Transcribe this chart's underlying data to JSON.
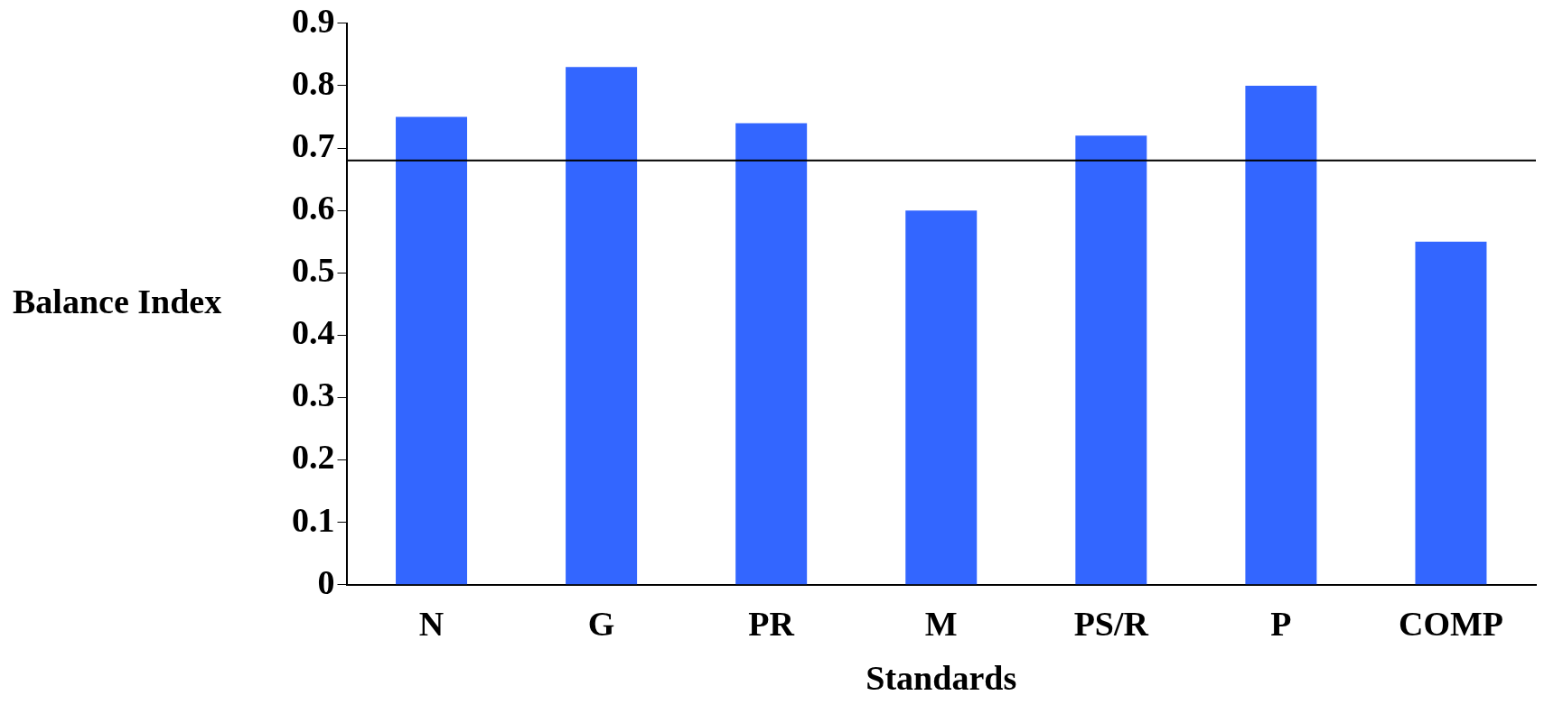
{
  "chart_data": {
    "type": "bar",
    "xlabel": "Standards",
    "ylabel": "Balance Index",
    "categories": [
      "N",
      "G",
      "PR",
      "M",
      "PS/R",
      "P",
      "COMP"
    ],
    "values": [
      0.75,
      0.83,
      0.74,
      0.6,
      0.72,
      0.8,
      0.55
    ],
    "color": "#3366ff",
    "ylim": [
      0,
      0.9
    ],
    "yticks": [
      0,
      0.1,
      0.2,
      0.3,
      0.4,
      0.5,
      0.6,
      0.7,
      0.8,
      0.9
    ],
    "ref_lines": [
      {
        "axis": "y",
        "value": 0.68,
        "color": "#000000"
      }
    ],
    "grid": false,
    "legend": false
  }
}
